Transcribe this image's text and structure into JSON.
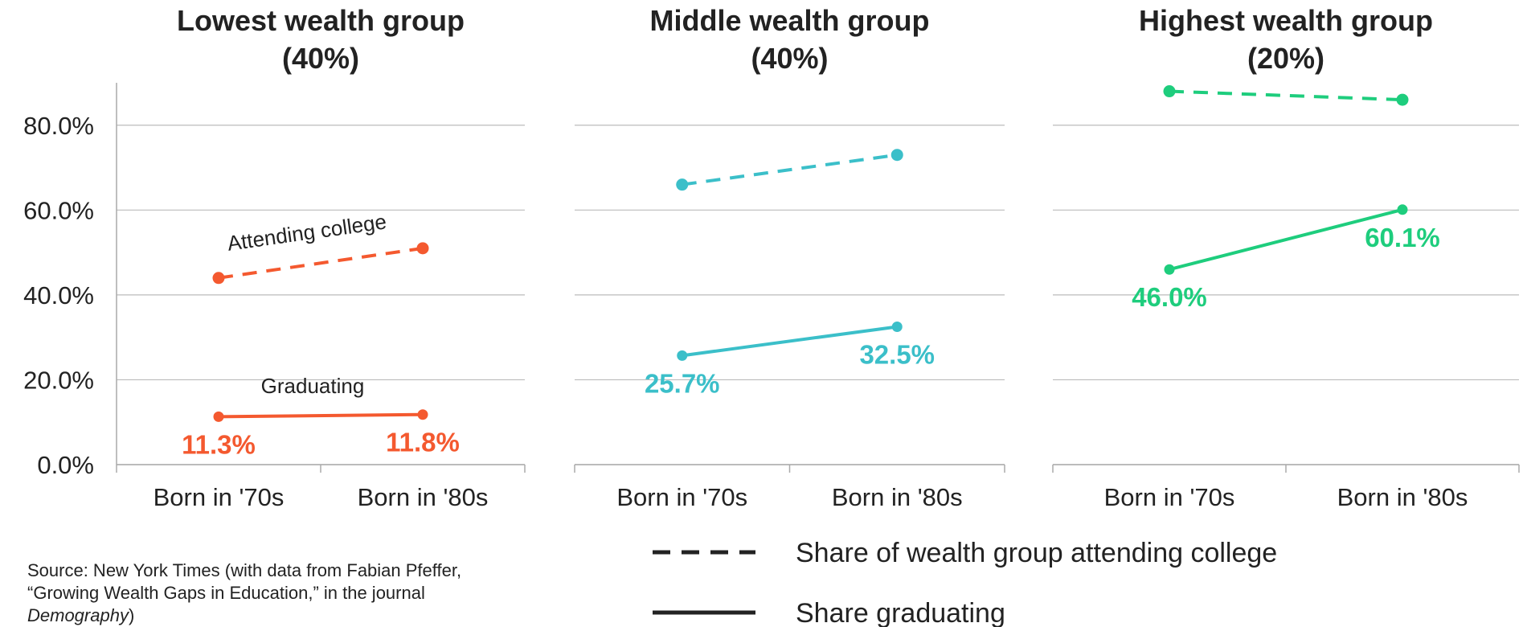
{
  "chart_data": [
    {
      "type": "line",
      "title": "Lowest wealth group",
      "subtitle": "(40%)",
      "categories": [
        "Born in '70s",
        "Born in '80s"
      ],
      "ylim": [
        0,
        90
      ],
      "yticks": [
        {
          "value": 0,
          "label": "0.0%"
        },
        {
          "value": 20,
          "label": "20.0%"
        },
        {
          "value": 40,
          "label": "40.0%"
        },
        {
          "value": 60,
          "label": "60.0%"
        },
        {
          "value": 80,
          "label": "80.0%"
        }
      ],
      "annotations": [
        "Attending college",
        "Graduating"
      ],
      "series": [
        {
          "style": "dashed",
          "color": "#f4592f",
          "values": [
            44,
            51
          ]
        },
        {
          "style": "solid",
          "color": "#f4592f",
          "values": [
            11.3,
            11.8
          ],
          "value_labels": [
            "11.3%",
            "11.8%"
          ]
        }
      ]
    },
    {
      "type": "line",
      "title": "Middle wealth group",
      "subtitle": "(40%)",
      "categories": [
        "Born in '70s",
        "Born in '80s"
      ],
      "ylim": [
        0,
        90
      ],
      "yticks": [
        0,
        20,
        40,
        60,
        80
      ],
      "series": [
        {
          "style": "dashed",
          "color": "#3bbfc9",
          "values": [
            66,
            73
          ]
        },
        {
          "style": "solid",
          "color": "#3bbfc9",
          "values": [
            25.7,
            32.5
          ],
          "value_labels": [
            "25.7%",
            "32.5%"
          ]
        }
      ]
    },
    {
      "type": "line",
      "title": "Highest wealth group",
      "subtitle": "(20%)",
      "categories": [
        "Born in '70s",
        "Born in '80s"
      ],
      "ylim": [
        0,
        90
      ],
      "yticks": [
        0,
        20,
        40,
        60,
        80
      ],
      "series": [
        {
          "style": "dashed",
          "color": "#1ecd7d",
          "values": [
            88,
            86
          ]
        },
        {
          "style": "solid",
          "color": "#1ecd7d",
          "values": [
            46.0,
            60.1
          ],
          "value_labels": [
            "46.0%",
            "60.1%"
          ]
        }
      ]
    }
  ],
  "legend": [
    {
      "label": "Share of wealth group attending college",
      "style": "dashed"
    },
    {
      "label": "Share graduating",
      "style": "solid"
    }
  ],
  "source": [
    "Source: New York Times (with data from Fabian Pfeffer,",
    "“Growing Wealth Gaps in Education,” in the journal",
    "Demography",
    ")"
  ]
}
